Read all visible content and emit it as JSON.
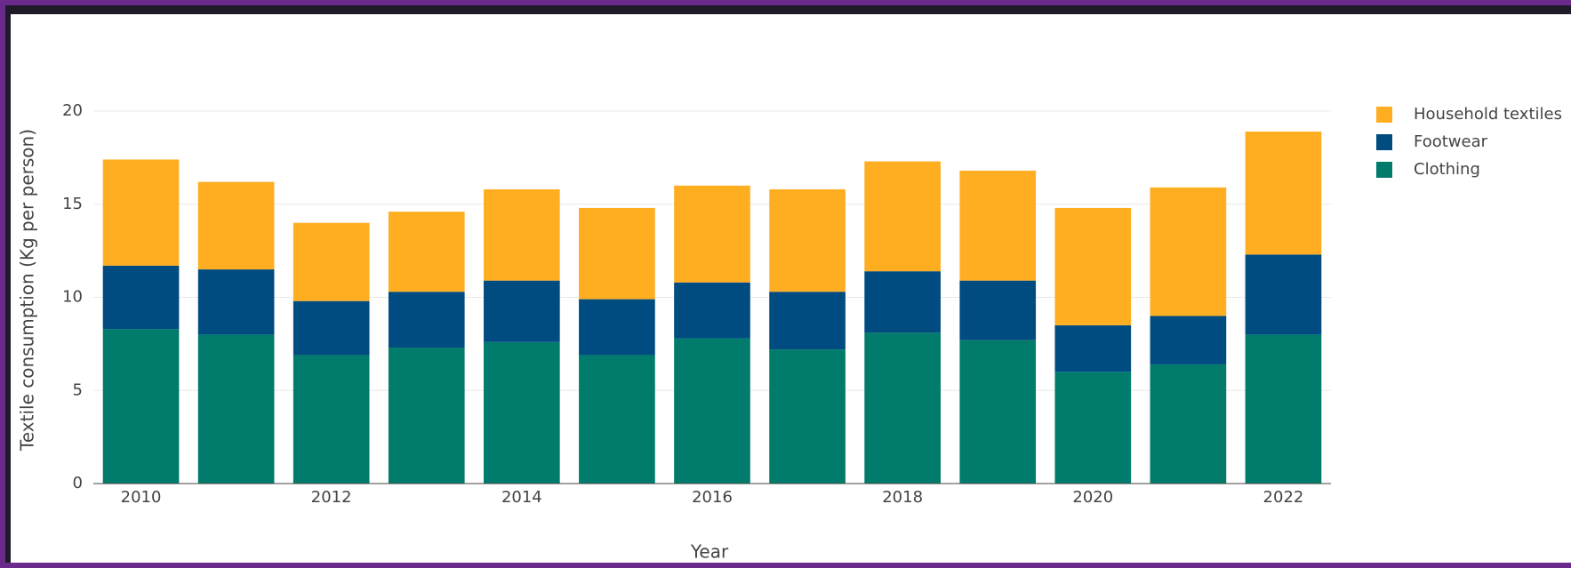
{
  "chart_data": {
    "type": "stacked-bar",
    "x": [
      2010,
      2011,
      2012,
      2013,
      2014,
      2015,
      2016,
      2017,
      2018,
      2019,
      2020,
      2021,
      2022
    ],
    "series": [
      {
        "name": "Clothing",
        "color": "#007b6c",
        "values": [
          8.3,
          8.0,
          6.9,
          7.3,
          7.6,
          6.9,
          7.8,
          7.2,
          8.1,
          7.7,
          6.0,
          6.4,
          8.0
        ]
      },
      {
        "name": "Footwear",
        "color": "#004c80",
        "values": [
          3.4,
          3.5,
          2.9,
          3.0,
          3.3,
          3.0,
          3.0,
          3.1,
          3.3,
          3.2,
          2.5,
          2.6,
          4.3
        ]
      },
      {
        "name": "Household textiles",
        "color": "#ffae22",
        "values": [
          5.7,
          4.7,
          4.2,
          4.3,
          4.9,
          4.9,
          5.2,
          5.5,
          5.9,
          5.9,
          6.3,
          6.9,
          6.6
        ]
      }
    ],
    "xlabel": "Year",
    "ylabel": "Textile consumption (Kg per person)",
    "xlim": [
      2009.5,
      2022.5
    ],
    "xticks": [
      2010,
      2012,
      2014,
      2016,
      2018,
      2020,
      2022
    ],
    "ylim": [
      0,
      20
    ],
    "yticks": [
      0,
      5,
      10,
      15,
      20
    ],
    "grid": true,
    "legend": "right"
  }
}
